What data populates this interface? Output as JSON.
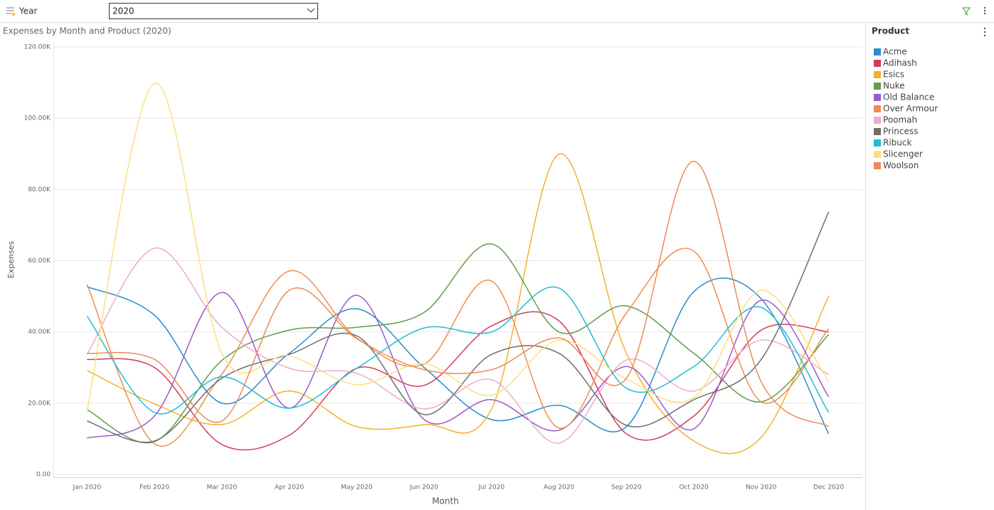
{
  "ui": {
    "slicer_label": "Year",
    "slicer_value": "2020"
  },
  "chart_data": {
    "type": "line",
    "title": "Expenses by Month and Product (2020)",
    "x_label": "Month",
    "y_label": "Expenses",
    "legend_title": "Product",
    "legend": "right",
    "grid": true,
    "smooth": true,
    "categories": [
      "Jan 2020",
      "Feb 2020",
      "Mar 2020",
      "Apr 2020",
      "May 2020",
      "Jun 2020",
      "Jul 2020",
      "Aug 2020",
      "Sep 2020",
      "Oct 2020",
      "Nov 2020",
      "Dec 2020"
    ],
    "ylim": [
      0,
      120000
    ],
    "yticks": [
      {
        "value": 0,
        "label": "0.00"
      },
      {
        "value": 20000,
        "label": "20.00K"
      },
      {
        "value": 40000,
        "label": "40.00K"
      },
      {
        "value": 60000,
        "label": "60.00K"
      },
      {
        "value": 80000,
        "label": "80.00K"
      },
      {
        "value": 100000,
        "label": "100.00K"
      },
      {
        "value": 120000,
        "label": "120.00K"
      }
    ],
    "series": [
      {
        "name": "Acme",
        "color": "#2a8ccc",
        "values": [
          52700,
          44700,
          20000,
          34000,
          46500,
          30000,
          15400,
          19400,
          13400,
          51300,
          49300,
          11400
        ]
      },
      {
        "name": "Adihash",
        "color": "#d23c5e",
        "values": [
          32300,
          30000,
          8400,
          11000,
          29800,
          25000,
          41700,
          43100,
          11400,
          16400,
          40500,
          40000
        ]
      },
      {
        "name": "Esics",
        "color": "#f4b12b",
        "values": [
          29200,
          19800,
          14000,
          23400,
          13400,
          14000,
          18400,
          89900,
          34000,
          9400,
          10400,
          50100
        ]
      },
      {
        "name": "Nuke",
        "color": "#5e9e49",
        "values": [
          18200,
          9200,
          32000,
          40500,
          41300,
          45500,
          64700,
          40000,
          47300,
          34000,
          20400,
          39300
        ]
      },
      {
        "name": "Old Balance",
        "color": "#9c5ac7",
        "values": [
          10200,
          16400,
          51100,
          18600,
          50300,
          15400,
          21000,
          12400,
          30300,
          12800,
          48900,
          21800
        ]
      },
      {
        "name": "Over Armour",
        "color": "#f08c4c",
        "values": [
          53300,
          8600,
          28200,
          57100,
          38300,
          31000,
          54300,
          13000,
          45300,
          62700,
          20400,
          40900
        ]
      },
      {
        "name": "Poomah",
        "color": "#eeaccb",
        "values": [
          33700,
          63500,
          41300,
          29800,
          28400,
          18400,
          26600,
          8800,
          32100,
          23400,
          37700,
          28000
        ]
      },
      {
        "name": "Princess",
        "color": "#6e6e6e",
        "values": [
          15000,
          9400,
          27000,
          33700,
          38900,
          16800,
          33700,
          34000,
          13800,
          21000,
          32300,
          73700
        ]
      },
      {
        "name": "Ribuck",
        "color": "#1fbdd4",
        "values": [
          44500,
          17400,
          27400,
          18600,
          29800,
          41100,
          40000,
          52300,
          24200,
          30300,
          46900,
          17400
        ]
      },
      {
        "name": "Slicenger",
        "color": "#fbe07f",
        "values": [
          17800,
          109800,
          34000,
          33300,
          25200,
          31100,
          22200,
          37700,
          26800,
          21600,
          51700,
          26000
        ]
      },
      {
        "name": "Woolson",
        "color": "#ec8a5a",
        "values": [
          34000,
          32300,
          15000,
          51700,
          38100,
          29400,
          29400,
          38300,
          27000,
          87900,
          26000,
          13400
        ]
      }
    ]
  }
}
